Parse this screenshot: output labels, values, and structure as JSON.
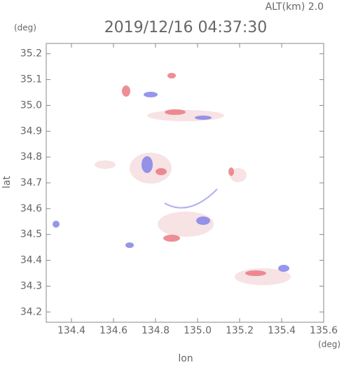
{
  "chart_data": {
    "type": "heatmap",
    "title": "2019/12/16 04:37:30",
    "subtitle": "ALT(km) 2.0",
    "x_label": "lon",
    "y_label": "lat",
    "x_unit": "(deg)",
    "y_unit": "(deg)",
    "xlim": [
      134.28,
      135.6
    ],
    "ylim": [
      34.16,
      35.24
    ],
    "xticks": [
      134.4,
      134.6,
      134.8,
      {
        "value": 135,
        "label": "135.0"
      },
      135.2,
      135.4,
      135.6
    ],
    "yticks": [
      34.2,
      34.3,
      34.4,
      34.5,
      34.6,
      34.7,
      34.8,
      34.9,
      {
        "value": 35,
        "label": "35.0"
      },
      35.1,
      35.2
    ]
  }
}
